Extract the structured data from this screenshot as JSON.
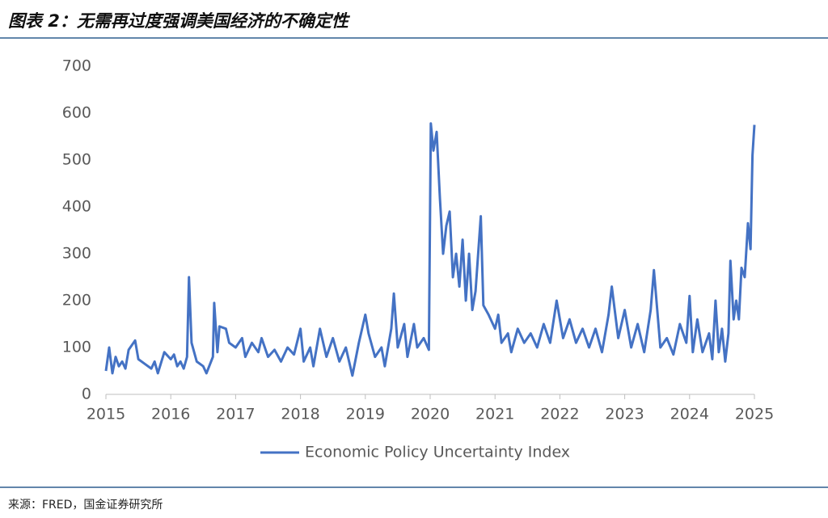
{
  "title": "图表 2：无需再过度强调美国经济的不确定性",
  "source": "来源：FRED，国金证券研究所",
  "chart_data": {
    "type": "line",
    "x": [
      2015.0,
      2015.05,
      2015.1,
      2015.15,
      2015.2,
      2015.25,
      2015.3,
      2015.35,
      2015.45,
      2015.5,
      2015.6,
      2015.7,
      2015.75,
      2015.8,
      2015.9,
      2016.0,
      2016.05,
      2016.1,
      2016.15,
      2016.2,
      2016.25,
      2016.28,
      2016.32,
      2016.4,
      2016.5,
      2016.55,
      2016.65,
      2016.67,
      2016.72,
      2016.75,
      2016.85,
      2016.9,
      2017.0,
      2017.1,
      2017.15,
      2017.25,
      2017.35,
      2017.4,
      2017.5,
      2017.6,
      2017.7,
      2017.8,
      2017.9,
      2018.0,
      2018.05,
      2018.15,
      2018.2,
      2018.3,
      2018.4,
      2018.5,
      2018.6,
      2018.7,
      2018.8,
      2018.9,
      2019.0,
      2019.05,
      2019.15,
      2019.25,
      2019.3,
      2019.4,
      2019.44,
      2019.5,
      2019.6,
      2019.65,
      2019.75,
      2019.8,
      2019.9,
      2019.98,
      2020.01,
      2020.05,
      2020.1,
      2020.15,
      2020.2,
      2020.25,
      2020.3,
      2020.35,
      2020.4,
      2020.45,
      2020.5,
      2020.55,
      2020.6,
      2020.65,
      2020.7,
      2020.78,
      2020.82,
      2020.9,
      2021.0,
      2021.05,
      2021.1,
      2021.2,
      2021.25,
      2021.35,
      2021.45,
      2021.55,
      2021.65,
      2021.75,
      2021.85,
      2021.95,
      2022.05,
      2022.15,
      2022.25,
      2022.35,
      2022.45,
      2022.55,
      2022.65,
      2022.75,
      2022.8,
      2022.9,
      2023.0,
      2023.1,
      2023.2,
      2023.3,
      2023.4,
      2023.45,
      2023.55,
      2023.65,
      2023.75,
      2023.85,
      2023.95,
      2024.0,
      2024.05,
      2024.12,
      2024.2,
      2024.3,
      2024.35,
      2024.4,
      2024.45,
      2024.5,
      2024.55,
      2024.6,
      2024.63,
      2024.68,
      2024.72,
      2024.76,
      2024.8,
      2024.85,
      2024.9,
      2024.94,
      2024.97,
      2025.0
    ],
    "series": [
      {
        "name": "Economic Policy Uncertainty Index",
        "color": "#4472c4",
        "values": [
          50,
          100,
          45,
          80,
          60,
          70,
          55,
          95,
          115,
          75,
          65,
          55,
          70,
          45,
          90,
          75,
          85,
          60,
          70,
          55,
          80,
          250,
          110,
          70,
          60,
          45,
          80,
          195,
          90,
          145,
          140,
          110,
          100,
          120,
          80,
          110,
          90,
          120,
          80,
          95,
          70,
          100,
          85,
          140,
          70,
          100,
          60,
          140,
          80,
          120,
          70,
          100,
          40,
          110,
          170,
          130,
          80,
          100,
          60,
          140,
          215,
          100,
          150,
          80,
          150,
          100,
          120,
          95,
          578,
          520,
          560,
          420,
          300,
          360,
          390,
          250,
          300,
          230,
          330,
          200,
          300,
          180,
          220,
          380,
          190,
          170,
          140,
          170,
          110,
          130,
          90,
          140,
          110,
          130,
          100,
          150,
          110,
          200,
          120,
          160,
          110,
          140,
          100,
          140,
          90,
          170,
          230,
          120,
          180,
          100,
          150,
          90,
          180,
          265,
          100,
          120,
          85,
          150,
          110,
          210,
          90,
          160,
          90,
          130,
          75,
          200,
          90,
          140,
          70,
          130,
          285,
          160,
          200,
          160,
          270,
          250,
          365,
          310,
          510,
          575
        ]
      }
    ],
    "xlim": [
      2015,
      2025
    ],
    "xticks": [
      2015,
      2016,
      2017,
      2018,
      2019,
      2020,
      2021,
      2022,
      2023,
      2024,
      2025
    ],
    "ylim": [
      0,
      700
    ],
    "yticks": [
      0,
      100,
      200,
      300,
      400,
      500,
      600,
      700
    ]
  }
}
